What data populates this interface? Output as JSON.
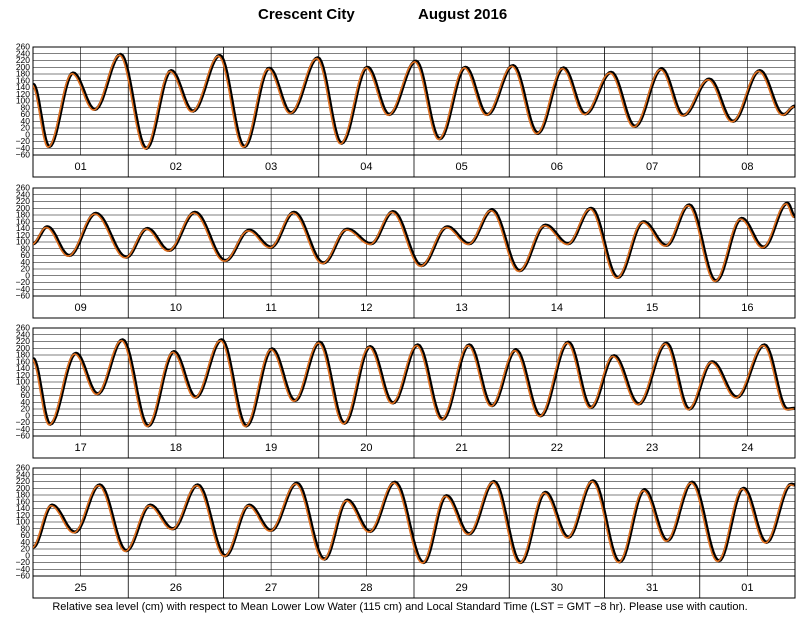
{
  "title": {
    "place": "Crescent City",
    "month": "August   2016"
  },
  "caption": "Relative sea level (cm) with respect to Mean Lower Low Water (115 cm) and Local Standard Time (LST = GMT −8 hr). Please use with caution.",
  "colors": {
    "observed": "#000000",
    "predicted": "#e07020",
    "grid": "#000000"
  },
  "chart_data": {
    "type": "line",
    "ylim": [
      -60,
      260
    ],
    "yticks": [
      -60,
      -40,
      -20,
      0,
      20,
      40,
      60,
      80,
      100,
      120,
      140,
      160,
      180,
      200,
      220,
      240,
      260
    ],
    "grid": true,
    "rows": [
      {
        "days": [
          "01",
          "02",
          "03",
          "04",
          "05",
          "06",
          "07",
          "08"
        ],
        "tide_points": [
          [
            0.0,
            150
          ],
          [
            0.17,
            -35
          ],
          [
            0.42,
            183
          ],
          [
            0.65,
            75
          ],
          [
            0.92,
            238
          ],
          [
            1.19,
            -40
          ],
          [
            1.45,
            190
          ],
          [
            1.68,
            70
          ],
          [
            1.96,
            235
          ],
          [
            2.22,
            -35
          ],
          [
            2.48,
            197
          ],
          [
            2.71,
            65
          ],
          [
            2.99,
            228
          ],
          [
            3.24,
            -25
          ],
          [
            3.51,
            200
          ],
          [
            3.74,
            60
          ],
          [
            4.02,
            218
          ],
          [
            4.27,
            -12
          ],
          [
            4.54,
            200
          ],
          [
            4.77,
            60
          ],
          [
            5.04,
            205
          ],
          [
            5.3,
            5
          ],
          [
            5.57,
            198
          ],
          [
            5.8,
            62
          ],
          [
            6.07,
            185
          ],
          [
            6.32,
            25
          ],
          [
            6.6,
            195
          ],
          [
            6.83,
            58
          ],
          [
            7.1,
            165
          ],
          [
            7.35,
            40
          ],
          [
            7.63,
            190
          ],
          [
            7.88,
            60
          ],
          [
            8.0,
            85
          ]
        ]
      },
      {
        "days": [
          "09",
          "10",
          "11",
          "12",
          "13",
          "14",
          "15",
          "16"
        ],
        "tide_points": [
          [
            0.0,
            95
          ],
          [
            0.15,
            145
          ],
          [
            0.38,
            60
          ],
          [
            0.66,
            185
          ],
          [
            0.98,
            55
          ],
          [
            1.2,
            140
          ],
          [
            1.43,
            75
          ],
          [
            1.7,
            188
          ],
          [
            2.02,
            45
          ],
          [
            2.27,
            135
          ],
          [
            2.5,
            85
          ],
          [
            2.74,
            188
          ],
          [
            3.05,
            38
          ],
          [
            3.3,
            138
          ],
          [
            3.55,
            95
          ],
          [
            3.78,
            190
          ],
          [
            4.08,
            30
          ],
          [
            4.35,
            145
          ],
          [
            4.58,
            95
          ],
          [
            4.82,
            195
          ],
          [
            5.11,
            15
          ],
          [
            5.38,
            150
          ],
          [
            5.62,
            95
          ],
          [
            5.86,
            200
          ],
          [
            6.14,
            -5
          ],
          [
            6.41,
            160
          ],
          [
            6.65,
            90
          ],
          [
            6.89,
            210
          ],
          [
            7.17,
            -15
          ],
          [
            7.44,
            170
          ],
          [
            7.67,
            85
          ],
          [
            7.92,
            215
          ],
          [
            8.0,
            175
          ]
        ]
      },
      {
        "days": [
          "17",
          "18",
          "19",
          "20",
          "21",
          "22",
          "23",
          "24"
        ],
        "tide_points": [
          [
            0.0,
            170
          ],
          [
            0.18,
            -25
          ],
          [
            0.45,
            185
          ],
          [
            0.68,
            65
          ],
          [
            0.94,
            225
          ],
          [
            1.21,
            -30
          ],
          [
            1.48,
            190
          ],
          [
            1.71,
            55
          ],
          [
            1.98,
            225
          ],
          [
            2.24,
            -30
          ],
          [
            2.51,
            198
          ],
          [
            2.75,
            45
          ],
          [
            3.01,
            218
          ],
          [
            3.27,
            -22
          ],
          [
            3.54,
            205
          ],
          [
            3.78,
            38
          ],
          [
            4.04,
            210
          ],
          [
            4.3,
            -10
          ],
          [
            4.58,
            210
          ],
          [
            4.82,
            30
          ],
          [
            5.07,
            195
          ],
          [
            5.33,
            0
          ],
          [
            5.62,
            218
          ],
          [
            5.86,
            25
          ],
          [
            6.1,
            178
          ],
          [
            6.36,
            35
          ],
          [
            6.65,
            215
          ],
          [
            6.89,
            20
          ],
          [
            7.13,
            160
          ],
          [
            7.39,
            55
          ],
          [
            7.68,
            210
          ],
          [
            7.92,
            20
          ],
          [
            8.0,
            22
          ]
        ]
      },
      {
        "days": [
          "25",
          "26",
          "27",
          "28",
          "29",
          "30",
          "31",
          "01"
        ],
        "tide_points": [
          [
            0.0,
            25
          ],
          [
            0.2,
            150
          ],
          [
            0.44,
            70
          ],
          [
            0.7,
            210
          ],
          [
            0.98,
            15
          ],
          [
            1.23,
            150
          ],
          [
            1.47,
            80
          ],
          [
            1.73,
            210
          ],
          [
            2.02,
            0
          ],
          [
            2.27,
            150
          ],
          [
            2.5,
            75
          ],
          [
            2.77,
            215
          ],
          [
            3.06,
            -10
          ],
          [
            3.3,
            165
          ],
          [
            3.54,
            72
          ],
          [
            3.8,
            218
          ],
          [
            4.1,
            -20
          ],
          [
            4.34,
            178
          ],
          [
            4.58,
            65
          ],
          [
            4.84,
            220
          ],
          [
            5.12,
            -20
          ],
          [
            5.38,
            188
          ],
          [
            5.62,
            55
          ],
          [
            5.88,
            222
          ],
          [
            6.16,
            -18
          ],
          [
            6.42,
            195
          ],
          [
            6.66,
            45
          ],
          [
            6.92,
            218
          ],
          [
            7.2,
            -15
          ],
          [
            7.46,
            200
          ],
          [
            7.7,
            40
          ],
          [
            7.96,
            212
          ],
          [
            8.0,
            210
          ]
        ]
      }
    ]
  }
}
